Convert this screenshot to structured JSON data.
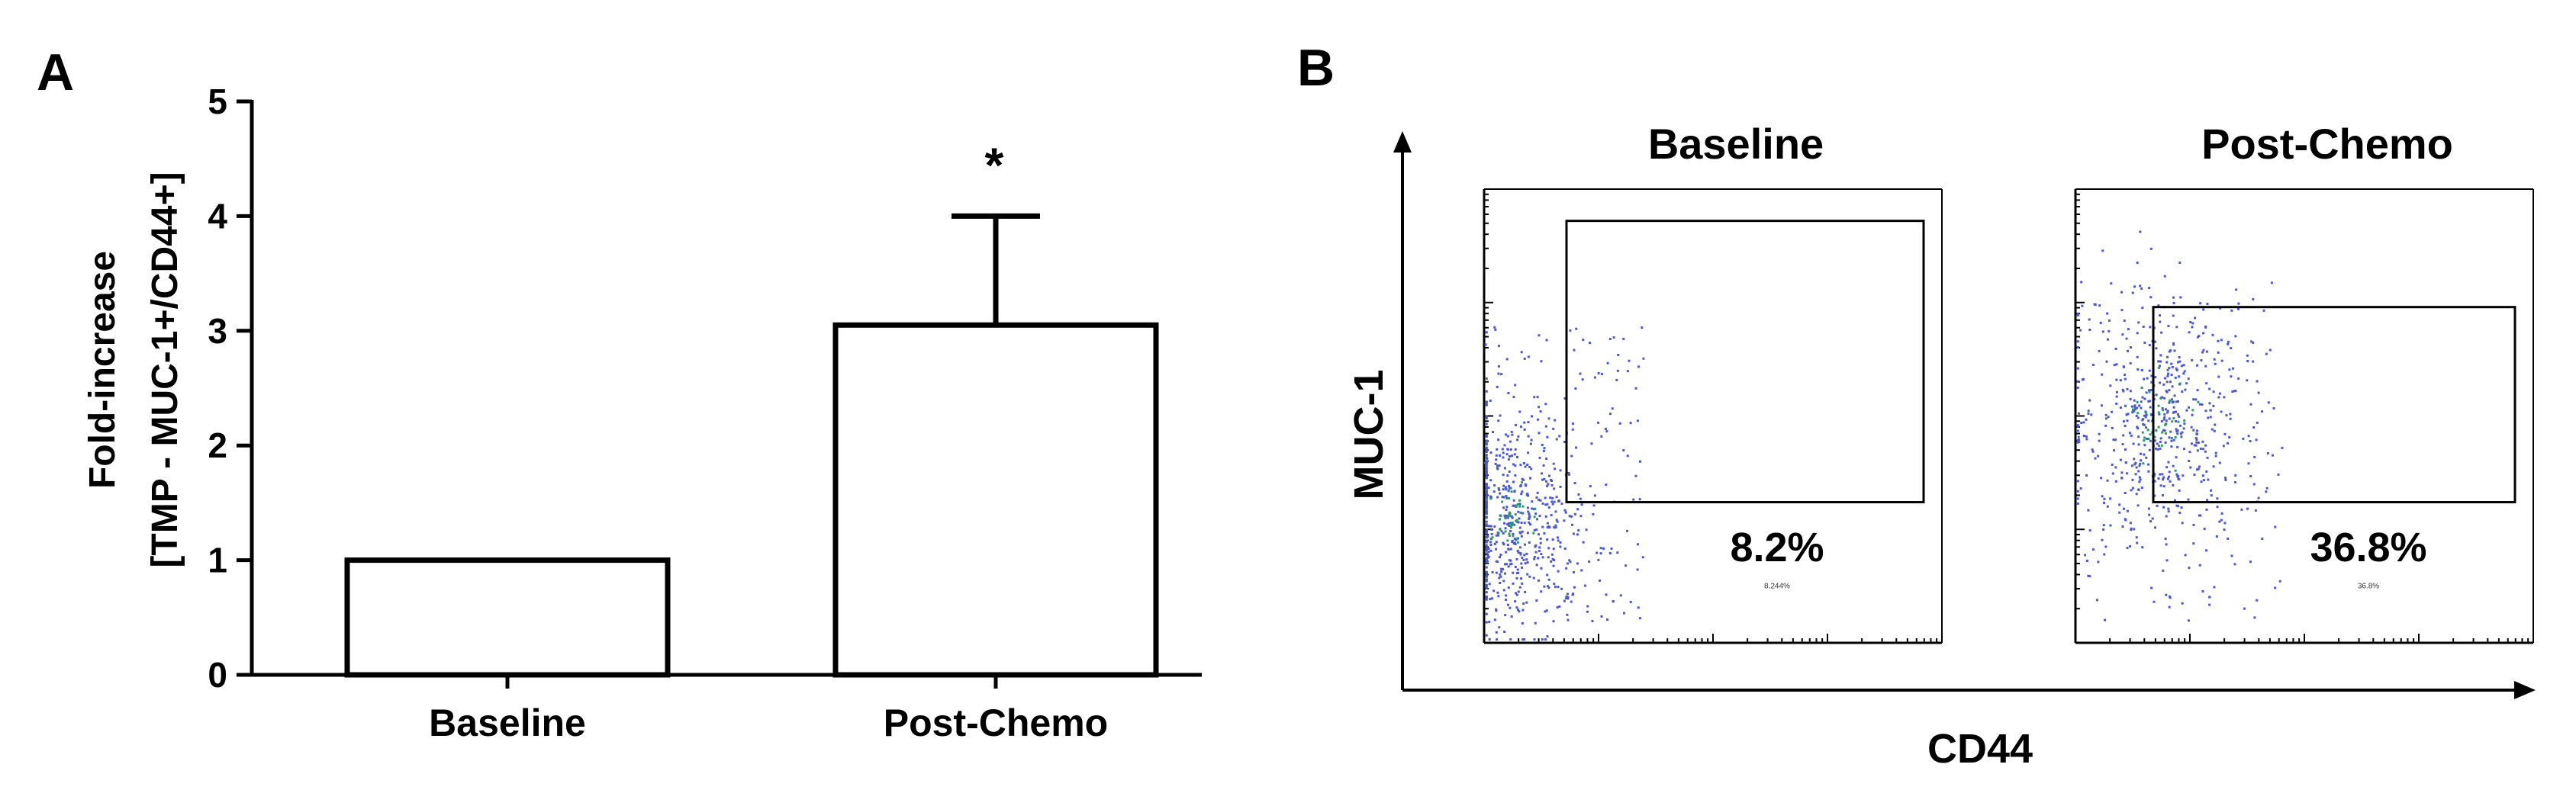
{
  "panels": {
    "a_label": "A",
    "b_label": "B"
  },
  "chart_data": [
    {
      "type": "bar",
      "categories": [
        "Baseline",
        "Post-Chemo"
      ],
      "values": [
        1.0,
        3.05
      ],
      "error_upper": [
        0,
        4.0
      ],
      "significance": [
        "",
        "*"
      ],
      "ylabel_line1": "Fold-increase",
      "ylabel_line2": "[TMP - MUC-1+/CD44+]",
      "xlabel": "",
      "ylim": [
        0,
        5
      ],
      "yticks": [
        0,
        1,
        2,
        3,
        4,
        5
      ],
      "grid": false,
      "bar_fill": "#ffffff",
      "bar_stroke": "#000000"
    },
    {
      "type": "scatter",
      "xlabel": "CD44",
      "ylabel": "MUC-1",
      "plots": [
        {
          "title": "Baseline",
          "gate_percent": "8.2%",
          "small_label": "8.244%",
          "point_color": "#4a58d6",
          "gate": {
            "x0": 0.18,
            "y0": 0.07,
            "x1": 0.96,
            "y1": 0.69
          },
          "cluster": {
            "cx": 0.06,
            "cy": 0.72,
            "sx": 0.08,
            "sy": 0.12,
            "n": 520
          },
          "spread": {
            "x0": 0.0,
            "x1": 0.35,
            "y0": 0.3,
            "y1": 0.95,
            "n": 160
          }
        },
        {
          "title": "Post-Chemo",
          "gate_percent": "36.8%",
          "small_label": "36.8%",
          "point_color": "#4a58d6",
          "gate": {
            "x0": 0.17,
            "y0": 0.26,
            "x1": 0.96,
            "y1": 0.69
          },
          "cluster": {
            "cx": 0.18,
            "cy": 0.5,
            "sx": 0.09,
            "sy": 0.13,
            "n": 480
          },
          "spread": {
            "x0": 0.0,
            "x1": 0.45,
            "y0": 0.2,
            "y1": 0.95,
            "n": 150
          }
        }
      ]
    }
  ]
}
